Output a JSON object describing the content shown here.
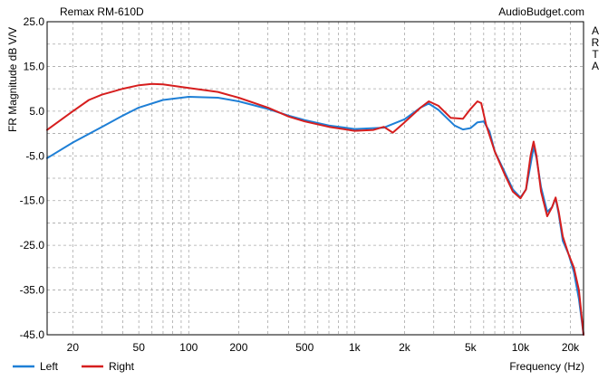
{
  "header": {
    "title": "Remax RM-610D",
    "source": "AudioBudget.com",
    "side_letters": [
      "A",
      "R",
      "T",
      "A"
    ]
  },
  "chart_data": {
    "type": "line",
    "title": "Remax RM-610D",
    "xlabel": "Frequency (Hz)",
    "ylabel": "FR Magnitude dB V/V",
    "xscale": "log",
    "xlim": [
      14,
      24000
    ],
    "ylim": [
      -45,
      25
    ],
    "x_tick_labels": [
      {
        "value": 20,
        "label": "20"
      },
      {
        "value": 50,
        "label": "50"
      },
      {
        "value": 100,
        "label": "100"
      },
      {
        "value": 200,
        "label": "200"
      },
      {
        "value": 500,
        "label": "500"
      },
      {
        "value": 1000,
        "label": "1k"
      },
      {
        "value": 2000,
        "label": "2k"
      },
      {
        "value": 5000,
        "label": "5k"
      },
      {
        "value": 10000,
        "label": "10k"
      },
      {
        "value": 20000,
        "label": "20k"
      }
    ],
    "y_tick_labels": [
      "25.0",
      "15.0",
      "5.0",
      "-5.0",
      "-15.0",
      "-25.0",
      "-35.0",
      "-45.0"
    ],
    "y_ticks": [
      25,
      15,
      5,
      -5,
      -15,
      -25,
      -35,
      -45
    ],
    "grid": true,
    "legend_position": "bottom-left",
    "series": [
      {
        "name": "Left",
        "color": "#1e7fd6",
        "points": [
          [
            14,
            -5.5
          ],
          [
            20,
            -2.0
          ],
          [
            30,
            1.5
          ],
          [
            40,
            4.0
          ],
          [
            50,
            5.8
          ],
          [
            70,
            7.5
          ],
          [
            100,
            8.2
          ],
          [
            150,
            8.0
          ],
          [
            200,
            7.2
          ],
          [
            300,
            5.5
          ],
          [
            400,
            4.0
          ],
          [
            500,
            3.0
          ],
          [
            700,
            1.8
          ],
          [
            1000,
            1.0
          ],
          [
            1500,
            1.3
          ],
          [
            2000,
            3.2
          ],
          [
            2500,
            5.8
          ],
          [
            2800,
            6.7
          ],
          [
            3200,
            5.3
          ],
          [
            4000,
            1.8
          ],
          [
            4500,
            0.9
          ],
          [
            5000,
            1.2
          ],
          [
            5500,
            2.5
          ],
          [
            6000,
            2.7
          ],
          [
            6500,
            0.5
          ],
          [
            7000,
            -4.0
          ],
          [
            8000,
            -8.5
          ],
          [
            9000,
            -12.5
          ],
          [
            10000,
            -14.3
          ],
          [
            10800,
            -12.5
          ],
          [
            11500,
            -7.0
          ],
          [
            12000,
            -3.0
          ],
          [
            12500,
            -5.5
          ],
          [
            13300,
            -12.0
          ],
          [
            14500,
            -17.5
          ],
          [
            15500,
            -16.5
          ],
          [
            16300,
            -14.5
          ],
          [
            17000,
            -18.0
          ],
          [
            18000,
            -24.0
          ],
          [
            19500,
            -27.0
          ],
          [
            21000,
            -31.0
          ],
          [
            22500,
            -37.0
          ],
          [
            24000,
            -45.0
          ]
        ]
      },
      {
        "name": "Right",
        "color": "#d61e1e",
        "points": [
          [
            14,
            0.8
          ],
          [
            20,
            5.0
          ],
          [
            25,
            7.5
          ],
          [
            30,
            8.7
          ],
          [
            40,
            10.0
          ],
          [
            50,
            10.8
          ],
          [
            60,
            11.1
          ],
          [
            70,
            11.0
          ],
          [
            100,
            10.2
          ],
          [
            150,
            9.3
          ],
          [
            200,
            8.0
          ],
          [
            300,
            5.8
          ],
          [
            400,
            3.8
          ],
          [
            500,
            2.7
          ],
          [
            700,
            1.5
          ],
          [
            1000,
            0.6
          ],
          [
            1300,
            0.8
          ],
          [
            1500,
            1.5
          ],
          [
            1700,
            0.2
          ],
          [
            2000,
            2.5
          ],
          [
            2500,
            5.8
          ],
          [
            2800,
            7.2
          ],
          [
            3200,
            6.2
          ],
          [
            3800,
            3.5
          ],
          [
            4500,
            3.3
          ],
          [
            5000,
            5.5
          ],
          [
            5500,
            7.2
          ],
          [
            5800,
            6.8
          ],
          [
            6200,
            2.0
          ],
          [
            7000,
            -4.0
          ],
          [
            8000,
            -9.0
          ],
          [
            9000,
            -13.0
          ],
          [
            10000,
            -14.5
          ],
          [
            10800,
            -12.5
          ],
          [
            11500,
            -5.0
          ],
          [
            12000,
            -1.8
          ],
          [
            12500,
            -5.0
          ],
          [
            13300,
            -13.0
          ],
          [
            14500,
            -18.5
          ],
          [
            15500,
            -16.5
          ],
          [
            16300,
            -14.3
          ],
          [
            17000,
            -17.5
          ],
          [
            18000,
            -23.0
          ],
          [
            19500,
            -27.0
          ],
          [
            21000,
            -30.0
          ],
          [
            22500,
            -35.0
          ],
          [
            24000,
            -45.0
          ]
        ]
      }
    ]
  }
}
